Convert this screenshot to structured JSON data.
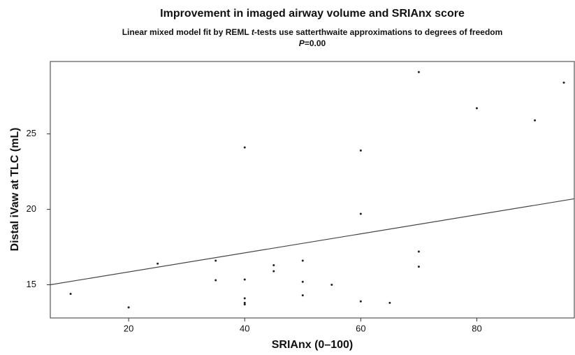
{
  "chart_data": {
    "type": "scatter",
    "title": "Improvement in imaged airway volume and SRIAnx score",
    "subtitle": [
      "Linear mixed model fit by REML ",
      "t",
      "-tests use satterthwaite approximations to degrees of freedom"
    ],
    "annotation": [
      "P",
      "=0.00"
    ],
    "x_label": "SRIAnx (0–100)",
    "y_label": "Distal iVaw at TLC (mL)",
    "xlim": [
      6.5,
      96.8
    ],
    "xticks": [
      20,
      40,
      60,
      80
    ],
    "ylim": [
      12.8,
      29.8
    ],
    "yticks": [
      15,
      20,
      25
    ],
    "color": "#222222",
    "points": {
      "x": [
        10,
        20,
        25,
        35,
        35,
        40,
        40,
        40,
        40,
        40,
        45,
        45,
        50,
        50,
        50,
        55,
        60,
        60,
        60,
        65,
        70,
        70,
        70,
        80,
        90,
        95
      ],
      "values": [
        14.4,
        13.5,
        16.4,
        16.6,
        15.3,
        24.1,
        15.35,
        14.1,
        13.8,
        13.7,
        16.3,
        15.9,
        16.6,
        15.2,
        14.3,
        15.0,
        23.9,
        19.7,
        13.9,
        13.8,
        29.1,
        17.2,
        16.2,
        26.7,
        25.9,
        28.4
      ]
    },
    "fit_line": {
      "x": [
        6.5,
        96.8
      ],
      "values": [
        15.0,
        20.7
      ],
      "color": "#444444"
    }
  }
}
